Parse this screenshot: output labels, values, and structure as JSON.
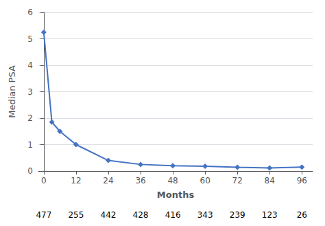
{
  "chart_data": {
    "type": "line",
    "x": [
      0,
      3,
      6,
      12,
      24,
      36,
      48,
      60,
      72,
      84,
      96
    ],
    "values": [
      5.25,
      1.85,
      1.5,
      1.0,
      0.4,
      0.25,
      0.2,
      0.18,
      0.14,
      0.12,
      0.15
    ],
    "color": "#4472C4",
    "marker": "diamond",
    "xlabel": "Months",
    "ylabel": "Median PSA",
    "xlim": [
      -2,
      100
    ],
    "ylim": [
      0,
      6
    ],
    "xticks": [
      0,
      12,
      24,
      36,
      48,
      60,
      72,
      84,
      96
    ],
    "yticks": [
      0,
      1,
      2,
      3,
      4,
      5,
      6
    ],
    "grid": true,
    "annotations": [
      {
        "x": 0,
        "text": "477"
      },
      {
        "x": 12,
        "text": "255"
      },
      {
        "x": 24,
        "text": "442"
      },
      {
        "x": 36,
        "text": "428"
      },
      {
        "x": 48,
        "text": "416"
      },
      {
        "x": 60,
        "text": "343"
      },
      {
        "x": 72,
        "text": "239"
      },
      {
        "x": 84,
        "text": "123"
      },
      {
        "x": 96,
        "text": "26"
      }
    ]
  }
}
